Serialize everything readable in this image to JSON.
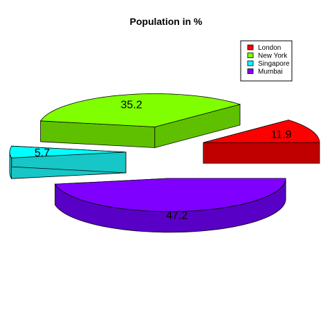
{
  "chart_data": {
    "type": "pie",
    "title": "Population in %",
    "three_d": true,
    "exploded": true,
    "legend_placement": "top-right",
    "slices": [
      {
        "name": "London",
        "value": 11.9,
        "color": "#ff0000",
        "side_color": "#c00000"
      },
      {
        "name": "New York",
        "value": 35.2,
        "color": "#7fff00",
        "side_color": "#5fc000"
      },
      {
        "name": "Singapore",
        "value": 5.7,
        "color": "#00ffff",
        "side_color": "#17c6c6"
      },
      {
        "name": "Mumbai",
        "value": 47.2,
        "color": "#7f00ff",
        "side_color": "#5900c6"
      }
    ]
  }
}
